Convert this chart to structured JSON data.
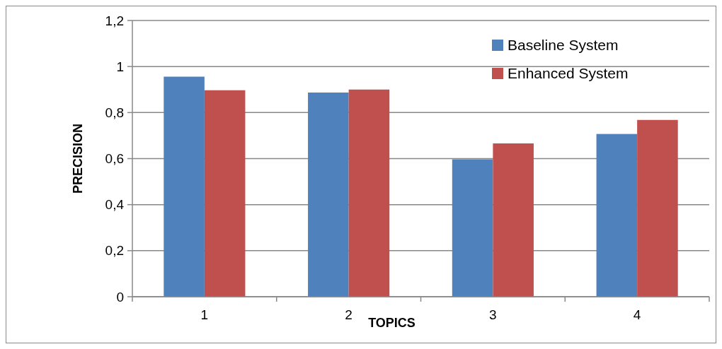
{
  "chart_data": {
    "type": "bar",
    "xlabel": "TOPICS",
    "ylabel": "PRECISION",
    "categories": [
      "1",
      "2",
      "3",
      "4"
    ],
    "series": [
      {
        "name": "Baseline System",
        "color": "#4f81bd",
        "values": [
          0.956,
          0.887,
          0.597,
          0.707
        ]
      },
      {
        "name": "Enhanced System",
        "color": "#c0504d",
        "values": [
          0.897,
          0.9,
          0.666,
          0.768
        ]
      }
    ],
    "ylim": [
      0,
      1.2
    ],
    "yticks": [
      0,
      {
        "value": 0.2,
        "label": "0,2"
      },
      {
        "value": 0.4,
        "label": "0,4"
      },
      {
        "value": 0.6,
        "label": "0,6"
      },
      {
        "value": 0.8,
        "label": "0,8"
      },
      1,
      {
        "value": 1.2,
        "label": "1,2"
      }
    ],
    "grid": "y",
    "legend": "top right"
  }
}
